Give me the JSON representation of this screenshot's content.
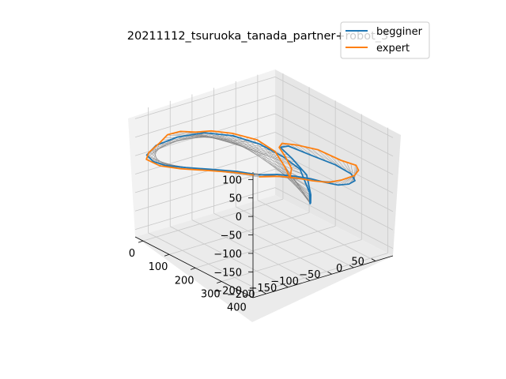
{
  "chart_data": {
    "type": "line3d",
    "title": "20211112_tsuruoka_tanada_partner+robot_3",
    "xlabel": "",
    "ylabel": "",
    "zlabel": "",
    "xticks": [
      "0",
      "100",
      "200",
      "300",
      "400"
    ],
    "yticks": [
      "−200",
      "−150",
      "−100",
      "−50",
      "0",
      "50"
    ],
    "zticks": [
      "100",
      "50",
      "0",
      "−50",
      "−100",
      "−150",
      "−200"
    ],
    "xlim": [
      -30,
      420
    ],
    "ylim": [
      -230,
      90
    ],
    "zlim": [
      -220,
      120
    ],
    "grid": true,
    "legend_position": "top-right",
    "connector_color": "#808080",
    "series": [
      {
        "name": "begginer",
        "color": "#1f77b4",
        "points": [
          [
            120,
            -38,
            -65
          ],
          [
            162,
            -20,
            -55
          ],
          [
            203,
            -5,
            -50
          ],
          [
            243,
            8,
            -47
          ],
          [
            281,
            17,
            -46
          ],
          [
            318,
            26,
            -43
          ],
          [
            342,
            36,
            -35
          ],
          [
            352,
            44,
            -25
          ],
          [
            340,
            42,
            -10
          ],
          [
            300,
            30,
            4
          ],
          [
            236,
            10,
            15
          ],
          [
            178,
            -4,
            22
          ],
          [
            150,
            -6,
            9
          ],
          [
            176,
            5,
            -15
          ],
          [
            214,
            16,
            -50
          ],
          [
            218,
            23,
            -105
          ],
          [
            216,
            24,
            -128
          ],
          [
            212,
            25,
            -132
          ],
          [
            210,
            26,
            -127
          ],
          [
            213,
            23,
            -100
          ],
          [
            195,
            12,
            -40
          ],
          [
            158,
            -6,
            -12
          ],
          [
            110,
            -30,
            12
          ],
          [
            62,
            -62,
            28
          ],
          [
            20,
            -102,
            35
          ],
          [
            -6,
            -148,
            30
          ],
          [
            -14,
            -192,
            20
          ],
          [
            -6,
            -218,
            6
          ],
          [
            5,
            -210,
            -10
          ],
          [
            16,
            -188,
            -25
          ],
          [
            36,
            -154,
            -35
          ],
          [
            62,
            -112,
            -45
          ],
          [
            92,
            -70,
            -55
          ],
          [
            118,
            -45,
            -62
          ]
        ]
      },
      {
        "name": "expert",
        "color": "#ff7f0e",
        "points": [
          [
            125,
            -40,
            -68
          ],
          [
            168,
            -20,
            -58
          ],
          [
            210,
            -4,
            -53
          ],
          [
            250,
            8,
            -50
          ],
          [
            290,
            20,
            -44
          ],
          [
            325,
            30,
            -28
          ],
          [
            353,
            42,
            -10
          ],
          [
            362,
            46,
            6
          ],
          [
            356,
            44,
            18
          ],
          [
            318,
            32,
            22
          ],
          [
            262,
            14,
            36
          ],
          [
            208,
            -2,
            35
          ],
          [
            170,
            -14,
            30
          ],
          [
            164,
            -17,
            18
          ],
          [
            175,
            -10,
            -5
          ],
          [
            188,
            -3,
            -35
          ],
          [
            184,
            -4,
            -62
          ],
          [
            172,
            -9,
            -34
          ],
          [
            150,
            -18,
            2
          ],
          [
            112,
            -36,
            26
          ],
          [
            64,
            -64,
            36
          ],
          [
            30,
            -92,
            40
          ],
          [
            10,
            -116,
            38
          ],
          [
            -4,
            -142,
            44
          ],
          [
            -10,
            -168,
            42
          ],
          [
            -2,
            -192,
            30
          ],
          [
            -8,
            -212,
            10
          ],
          [
            -4,
            -220,
            -4
          ],
          [
            14,
            -200,
            -22
          ],
          [
            36,
            -166,
            -34
          ],
          [
            64,
            -122,
            -44
          ],
          [
            94,
            -78,
            -54
          ],
          [
            120,
            -48,
            -62
          ]
        ]
      }
    ]
  }
}
